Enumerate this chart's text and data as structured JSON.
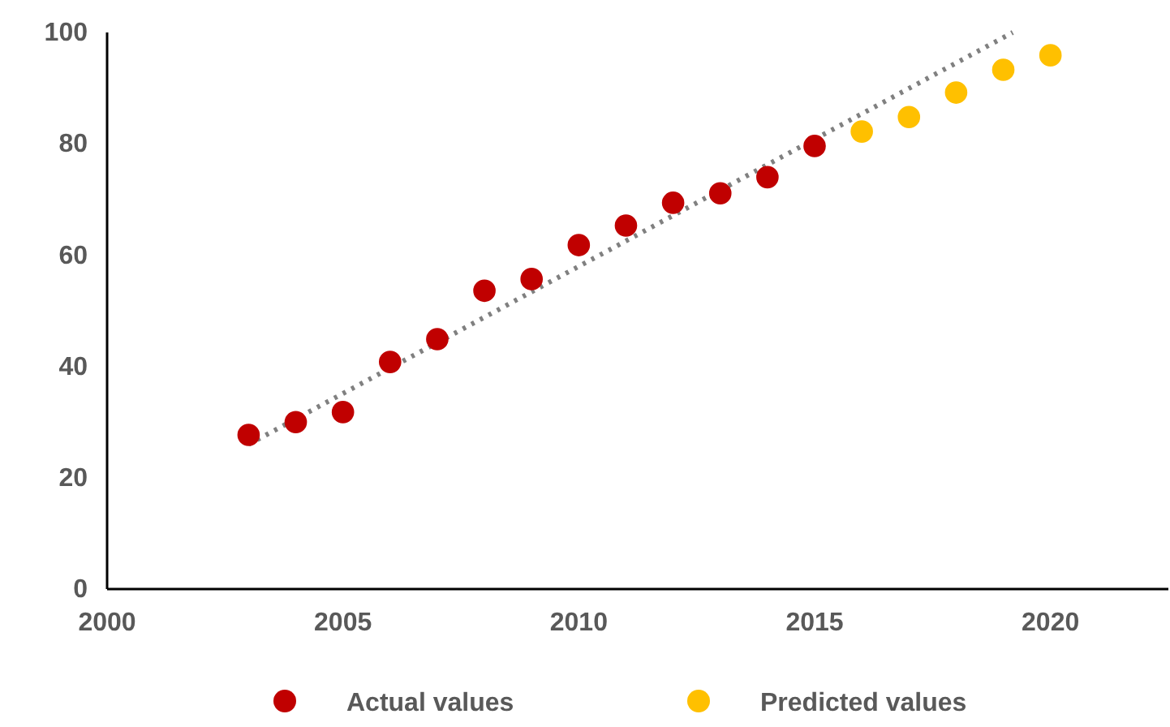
{
  "chart_data": {
    "type": "scatter",
    "x": [
      2003,
      2004,
      2005,
      2006,
      2007,
      2008,
      2009,
      2010,
      2011,
      2012,
      2013,
      2014,
      2015
    ],
    "series": [
      {
        "name": "Actual values",
        "color": "#c00000",
        "marker": "circle",
        "values": [
          27.7,
          30,
          31.8,
          40.8,
          44.9,
          53.6,
          55.7,
          61.8,
          65.3,
          69.4,
          71.1,
          74,
          79.6
        ]
      },
      {
        "name": "Predicted values",
        "color": "#ffc000",
        "marker": "circle",
        "x": [
          2016,
          2017,
          2018,
          2019,
          2020
        ],
        "values": [
          82.2,
          84.8,
          89.2,
          93.3,
          95.9
        ]
      },
      {
        "type": "line",
        "color": "#808080",
        "line_style": "dotted",
        "x": [
          2003,
          2019.2
        ],
        "values": [
          26,
          100
        ]
      }
    ],
    "xlim": [
      2000,
      2022.5
    ],
    "xticks": [
      2000,
      2005,
      2010,
      2015,
      2020
    ],
    "ylim": [
      0,
      100
    ],
    "yticks": [
      0,
      20,
      40,
      60,
      80,
      100
    ],
    "grid": false,
    "legend": "bottom"
  }
}
